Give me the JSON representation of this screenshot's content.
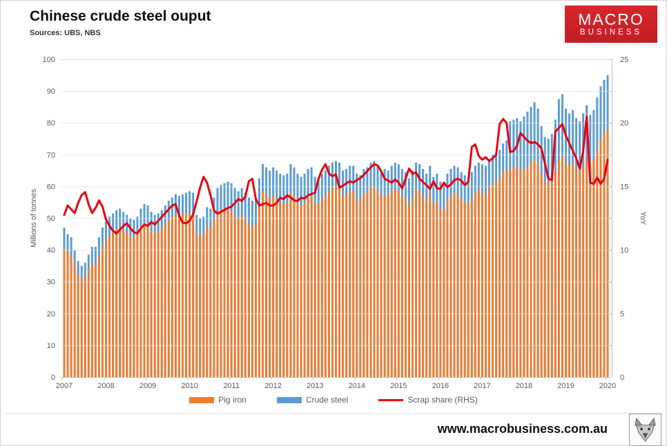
{
  "header": {
    "title": "Chinese crude steel ouput",
    "sources": "Sources: UBS, NBS"
  },
  "logo": {
    "line1": "MACRO",
    "line2": "BUSINESS",
    "bg_color": "#cb2026",
    "text_color": "#ffffff"
  },
  "footer": {
    "url": "www.macrobusiness.com.au",
    "logo_icon": "wolf-head-icon"
  },
  "colors": {
    "pig_iron": "#ED7D31",
    "crude_steel": "#5B9BD5",
    "scrap_share": "#E8000D",
    "gridline": "#d9d9d9",
    "axis": "#bfbfbf",
    "tick_text": "#595959"
  },
  "chart_data": {
    "type": "combo-bar-line",
    "title": "Chinese crude steel ouput",
    "x_interval": "monthly",
    "x_start": "2007-01",
    "x_end": "2020-01",
    "grid": "horizontal",
    "legend_position": "bottom",
    "years": [
      2007,
      2008,
      2009,
      2010,
      2011,
      2012,
      2013,
      2014,
      2015,
      2016,
      2017,
      2018,
      2019,
      2020
    ],
    "left_axis": {
      "title": "Millions of tonnes",
      "min": 0,
      "max": 100,
      "ticks": [
        0,
        10,
        20,
        30,
        40,
        50,
        60,
        70,
        80,
        90,
        100
      ]
    },
    "right_axis": {
      "title": "YoY",
      "min": 0,
      "max": 25,
      "ticks": [
        0,
        5,
        10,
        15,
        20,
        25
      ]
    },
    "legend": [
      {
        "label": "Pig iron",
        "type": "bar",
        "color": "#ED7D31"
      },
      {
        "label": "Crude steel",
        "type": "bar",
        "color": "#5B9BD5"
      },
      {
        "label": "Scrap share (RHS)",
        "type": "line",
        "color": "#E8000D"
      }
    ],
    "series": [
      {
        "name": "Crude steel",
        "axis": "left",
        "values": [
          47,
          45,
          44,
          40,
          36.5,
          35,
          36,
          38.5,
          41,
          41,
          44,
          47,
          49,
          50.5,
          51.5,
          52.5,
          53,
          52,
          51,
          50,
          49.5,
          50.5,
          53,
          54.5,
          54,
          52,
          51,
          51.5,
          52.5,
          54,
          55.5,
          56.5,
          57.5,
          57,
          57.5,
          58,
          58.5,
          58,
          51,
          50,
          50.5,
          53.5,
          53,
          56.5,
          59.5,
          60.5,
          61,
          61.5,
          61,
          59.5,
          58.5,
          59.5,
          58,
          56.5,
          55.5,
          56,
          62.5,
          67,
          66,
          65,
          66,
          65,
          64,
          63.5,
          64,
          67,
          66,
          64,
          63,
          64,
          65.5,
          66,
          63,
          62.5,
          64,
          65,
          66.5,
          67.5,
          68,
          67.5,
          65,
          65.5,
          66.5,
          66.5,
          64,
          63.5,
          65.5,
          66,
          67.5,
          68,
          66.5,
          65,
          65.5,
          65,
          66.5,
          67.5,
          67,
          65.5,
          64.5,
          62.5,
          65,
          67.5,
          67,
          65.5,
          64,
          66.5,
          63,
          64,
          61.5,
          61,
          64,
          65.5,
          66.5,
          66,
          64.5,
          63.5,
          63,
          64.5,
          66.5,
          67.5,
          67,
          66.5,
          68.5,
          70,
          70.5,
          71.5,
          73.5,
          74.5,
          80.5,
          81,
          81.5,
          80.5,
          82,
          83.5,
          85,
          86.5,
          84.5,
          79,
          75.5,
          75,
          76.5,
          81,
          87.5,
          89,
          84.5,
          83,
          84,
          81.5,
          80.5,
          83,
          85.5,
          82.5,
          84,
          88,
          91.5,
          93.5,
          95
        ]
      },
      {
        "name": "Pig iron",
        "axis": "left",
        "values": [
          40.5,
          39.5,
          38.5,
          35.5,
          32.5,
          31,
          31.5,
          34,
          35.5,
          35.5,
          38,
          40.5,
          43,
          44.5,
          45.5,
          46.5,
          47,
          46.5,
          45.5,
          44.5,
          44,
          45,
          47.5,
          48.5,
          47.5,
          46,
          45.5,
          46,
          47,
          48,
          49.5,
          50.5,
          51,
          50.5,
          51,
          51.5,
          51.5,
          51,
          45.5,
          44.5,
          45,
          47.5,
          47,
          49.5,
          51.5,
          52.5,
          52.5,
          53,
          52.5,
          51,
          50,
          51,
          49.5,
          48,
          47.5,
          48,
          54,
          58.5,
          57.5,
          56.5,
          57,
          56,
          55,
          54.5,
          55,
          58,
          57,
          55,
          54,
          55,
          56.5,
          57,
          55,
          54.5,
          56,
          57,
          58.5,
          59.5,
          60,
          59.5,
          57,
          57.5,
          58.5,
          58.5,
          56,
          55.5,
          57.5,
          58,
          59.5,
          60,
          58.5,
          57,
          57.5,
          57,
          58.5,
          59.5,
          58.5,
          57,
          56,
          54,
          56.5,
          59,
          58.5,
          57,
          55.5,
          58,
          54.5,
          55.5,
          53,
          52.5,
          55.5,
          57,
          58,
          57.5,
          56,
          55,
          54.5,
          56,
          58,
          59,
          58,
          57.5,
          59.5,
          61,
          61.5,
          62.5,
          64.5,
          65.5,
          65.5,
          66,
          66,
          65.5,
          65,
          66,
          67.5,
          68.5,
          67,
          64,
          61.5,
          61,
          62.5,
          64.5,
          68,
          69.5,
          67.5,
          66.5,
          67.5,
          65.5,
          65,
          66.5,
          69,
          67,
          68.5,
          71.5,
          75,
          77,
          78
        ]
      },
      {
        "name": "Scrap share (RHS)",
        "axis": "right",
        "values": [
          12.75,
          13.5,
          13.2,
          12.9,
          13.7,
          14.3,
          14.55,
          13.6,
          12.9,
          13.3,
          13.9,
          13.4,
          12.4,
          11.9,
          11.5,
          11.3,
          11.6,
          11.9,
          12.1,
          11.7,
          11.4,
          11.3,
          11.7,
          12.0,
          11.9,
          12.2,
          12.0,
          12.3,
          12.6,
          12.9,
          13.2,
          13.5,
          13.6,
          12.7,
          12.15,
          12.1,
          12.3,
          12.8,
          13.8,
          14.9,
          15.75,
          15.3,
          14.3,
          13.1,
          12.85,
          13.0,
          13.15,
          13.3,
          13.4,
          13.7,
          14.0,
          13.85,
          14.2,
          15.4,
          15.6,
          14.0,
          13.5,
          13.6,
          13.7,
          13.5,
          13.5,
          13.7,
          14.1,
          14.0,
          14.3,
          14.15,
          13.9,
          13.85,
          14.1,
          14.05,
          14.3,
          14.4,
          14.5,
          15.6,
          16.3,
          16.75,
          16.0,
          15.8,
          15.95,
          14.9,
          15.05,
          15.25,
          15.4,
          15.3,
          15.5,
          15.65,
          15.9,
          16.2,
          16.5,
          16.75,
          16.65,
          16.2,
          15.6,
          15.45,
          15.3,
          15.55,
          15.3,
          14.85,
          15.6,
          16.4,
          16.0,
          16.1,
          15.6,
          15.35,
          15.1,
          14.8,
          15.4,
          14.85,
          14.8,
          15.3,
          14.95,
          15.15,
          15.5,
          15.6,
          15.45,
          15.1,
          15.35,
          18.1,
          18.3,
          17.4,
          17.1,
          17.3,
          17.0,
          17.2,
          17.5,
          19.9,
          20.3,
          20.0,
          17.7,
          17.8,
          18.2,
          19.2,
          18.9,
          18.6,
          18.4,
          18.5,
          18.3,
          18.0,
          16.8,
          15.6,
          15.5,
          19.3,
          19.6,
          19.9,
          19.0,
          18.4,
          17.8,
          17.2,
          16.4,
          17.8,
          20.5,
          15.3,
          15.2,
          15.7,
          15.2,
          15.6,
          17.1
        ]
      }
    ]
  }
}
